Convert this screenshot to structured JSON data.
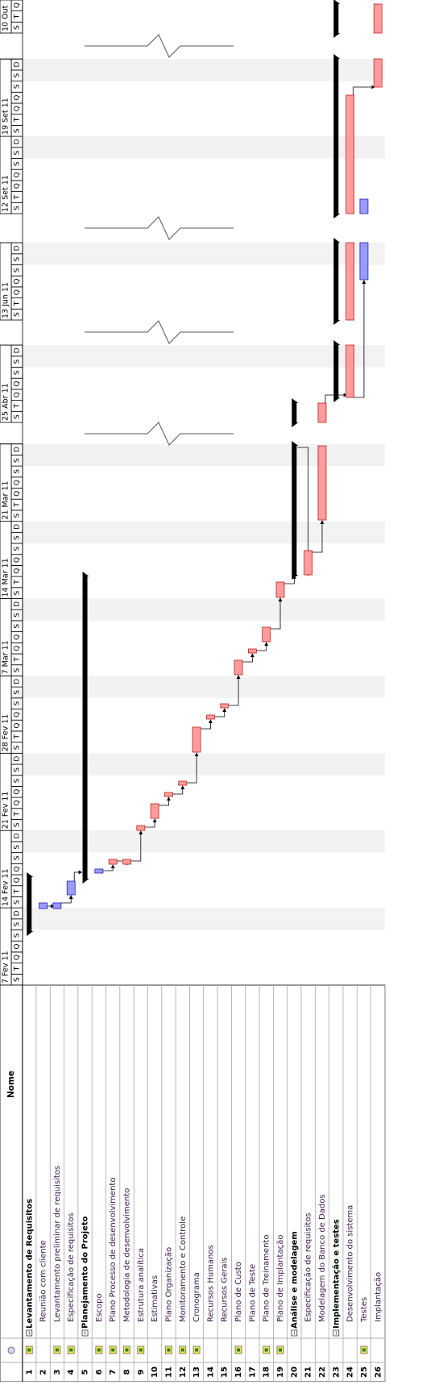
{
  "table": {
    "header": {
      "name": "Nome"
    },
    "rows": [
      {
        "id": 1,
        "name": "Levantamento de Requisitos",
        "summary": true,
        "indicator": true
      },
      {
        "id": 2,
        "name": "Reunião com cliente"
      },
      {
        "id": 3,
        "name": "Levantamento preliminar de requisitos",
        "indicator": true
      },
      {
        "id": 4,
        "name": "Especificação de requisitos",
        "indicator": true
      },
      {
        "id": 5,
        "name": "Planejamento do Projeto",
        "summary": true
      },
      {
        "id": 6,
        "name": "Escopo",
        "indicator": true
      },
      {
        "id": 7,
        "name": "Plano Processo de desenvolvimento",
        "indicator": true
      },
      {
        "id": 8,
        "name": "Metodologia de desenvolvimento",
        "indicator": true
      },
      {
        "id": 9,
        "name": "Estrutura analítica",
        "indicator": true
      },
      {
        "id": 10,
        "name": "Estimativas"
      },
      {
        "id": 11,
        "name": "Plano Organização",
        "indicator": true
      },
      {
        "id": 12,
        "name": "Monitoramento e Controle",
        "indicator": true
      },
      {
        "id": 13,
        "name": "Cronograma",
        "indicator": true
      },
      {
        "id": 14,
        "name": "Recursos Humanos"
      },
      {
        "id": 15,
        "name": "Recursos Gerais"
      },
      {
        "id": 16,
        "name": "Plano de Custo",
        "indicator": true
      },
      {
        "id": 17,
        "name": "Plano de Teste"
      },
      {
        "id": 18,
        "name": "Plano de Treinamento",
        "indicator": true
      },
      {
        "id": 19,
        "name": "Plano de Implantação",
        "indicator": true
      },
      {
        "id": 20,
        "name": "Análise e modelagem",
        "summary": true
      },
      {
        "id": 21,
        "name": "Especificação de requisitos"
      },
      {
        "id": 22,
        "name": "Modelagem do Banco de Dados"
      },
      {
        "id": 23,
        "name": "Implementação e testes",
        "summary": true
      },
      {
        "id": 24,
        "name": "Desenvolvimento do sistema"
      },
      {
        "id": 25,
        "name": "Testes",
        "indicator": true
      },
      {
        "id": 26,
        "name": "Implantação"
      }
    ]
  },
  "timeline": {
    "segments": [
      {
        "weeks": [
          {
            "label": "7 Fev 11",
            "days": [
              "S",
              "T",
              "Q",
              "Q",
              "S",
              "S",
              "D"
            ]
          },
          {
            "label": "14 Fev 11",
            "days": [
              "S",
              "T",
              "Q",
              "Q",
              "S",
              "S",
              "D"
            ]
          },
          {
            "label": "21 Fev 11",
            "days": [
              "S",
              "T",
              "Q",
              "Q",
              "S",
              "S",
              "D"
            ]
          },
          {
            "label": "28 Fev 11",
            "days": [
              "S",
              "T",
              "Q",
              "Q",
              "S",
              "S",
              "D"
            ]
          },
          {
            "label": "7 Mar 11",
            "days": [
              "S",
              "T",
              "Q",
              "Q",
              "S",
              "S",
              "D"
            ]
          },
          {
            "label": "14 Mar 11",
            "days": [
              "S",
              "T",
              "Q",
              "Q",
              "S",
              "S",
              "D"
            ]
          },
          {
            "label": "21 Mar 11",
            "days": [
              "S",
              "T",
              "Q",
              "Q",
              "S",
              "S",
              "D"
            ]
          }
        ]
      },
      {
        "weeks": [
          {
            "label": "25 Abr 11",
            "days": [
              "S",
              "T",
              "Q",
              "Q",
              "S",
              "S",
              "D"
            ]
          }
        ]
      },
      {
        "weeks": [
          {
            "label": "13 Jun 11",
            "days": [
              "S",
              "T",
              "Q",
              "Q",
              "S",
              "S",
              "D"
            ]
          }
        ]
      },
      {
        "weeks": [
          {
            "label": "12 Set 11",
            "days": [
              "S",
              "T",
              "Q",
              "Q",
              "S",
              "S",
              "D"
            ]
          },
          {
            "label": "19 Set 11",
            "days": [
              "S",
              "T",
              "Q",
              "Q",
              "S",
              "S",
              "D"
            ]
          }
        ]
      },
      {
        "weeks": [
          {
            "label": "10 Out",
            "days": [
              "S",
              "T",
              "Q"
            ]
          }
        ]
      }
    ]
  }
}
